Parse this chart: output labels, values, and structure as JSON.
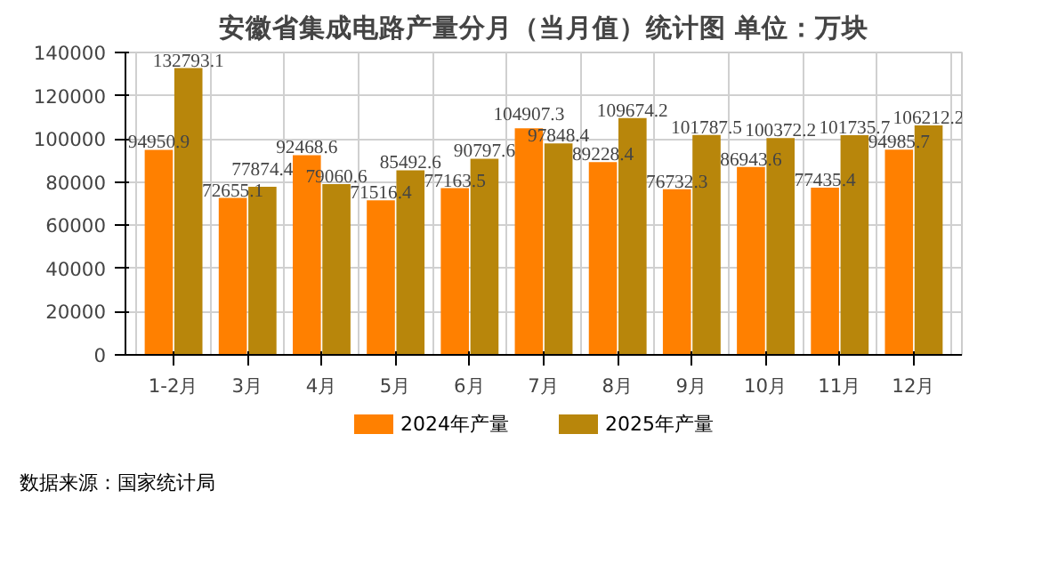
{
  "chart_data": {
    "type": "bar",
    "title": "安徽省集成电路产量分月（当月值）统计图 单位：万块",
    "categories": [
      "1-2月",
      "3月",
      "4月",
      "5月",
      "6月",
      "7月",
      "8月",
      "9月",
      "10月",
      "11月",
      "12月"
    ],
    "series": [
      {
        "name": "2024年产量",
        "color": "#ff8000",
        "values": [
          94950.9,
          72655.1,
          92468.6,
          71516.4,
          77163.5,
          104907.3,
          89228.4,
          76732.3,
          86943.6,
          77435.4,
          94985.7
        ]
      },
      {
        "name": "2025年产量",
        "color": "#b8860b",
        "values": [
          132793.1,
          77874.4,
          79060.6,
          85492.6,
          90797.6,
          97848.4,
          109674.2,
          101787.5,
          100372.2,
          101735.7,
          106212.2
        ]
      }
    ],
    "ylim": [
      0,
      140000
    ],
    "yticks": [
      0,
      20000,
      40000,
      60000,
      80000,
      100000,
      120000,
      140000
    ],
    "grid": true,
    "legend": "bottom",
    "data_labels": true,
    "annotations": [
      "数据来源：国家统计局"
    ]
  }
}
